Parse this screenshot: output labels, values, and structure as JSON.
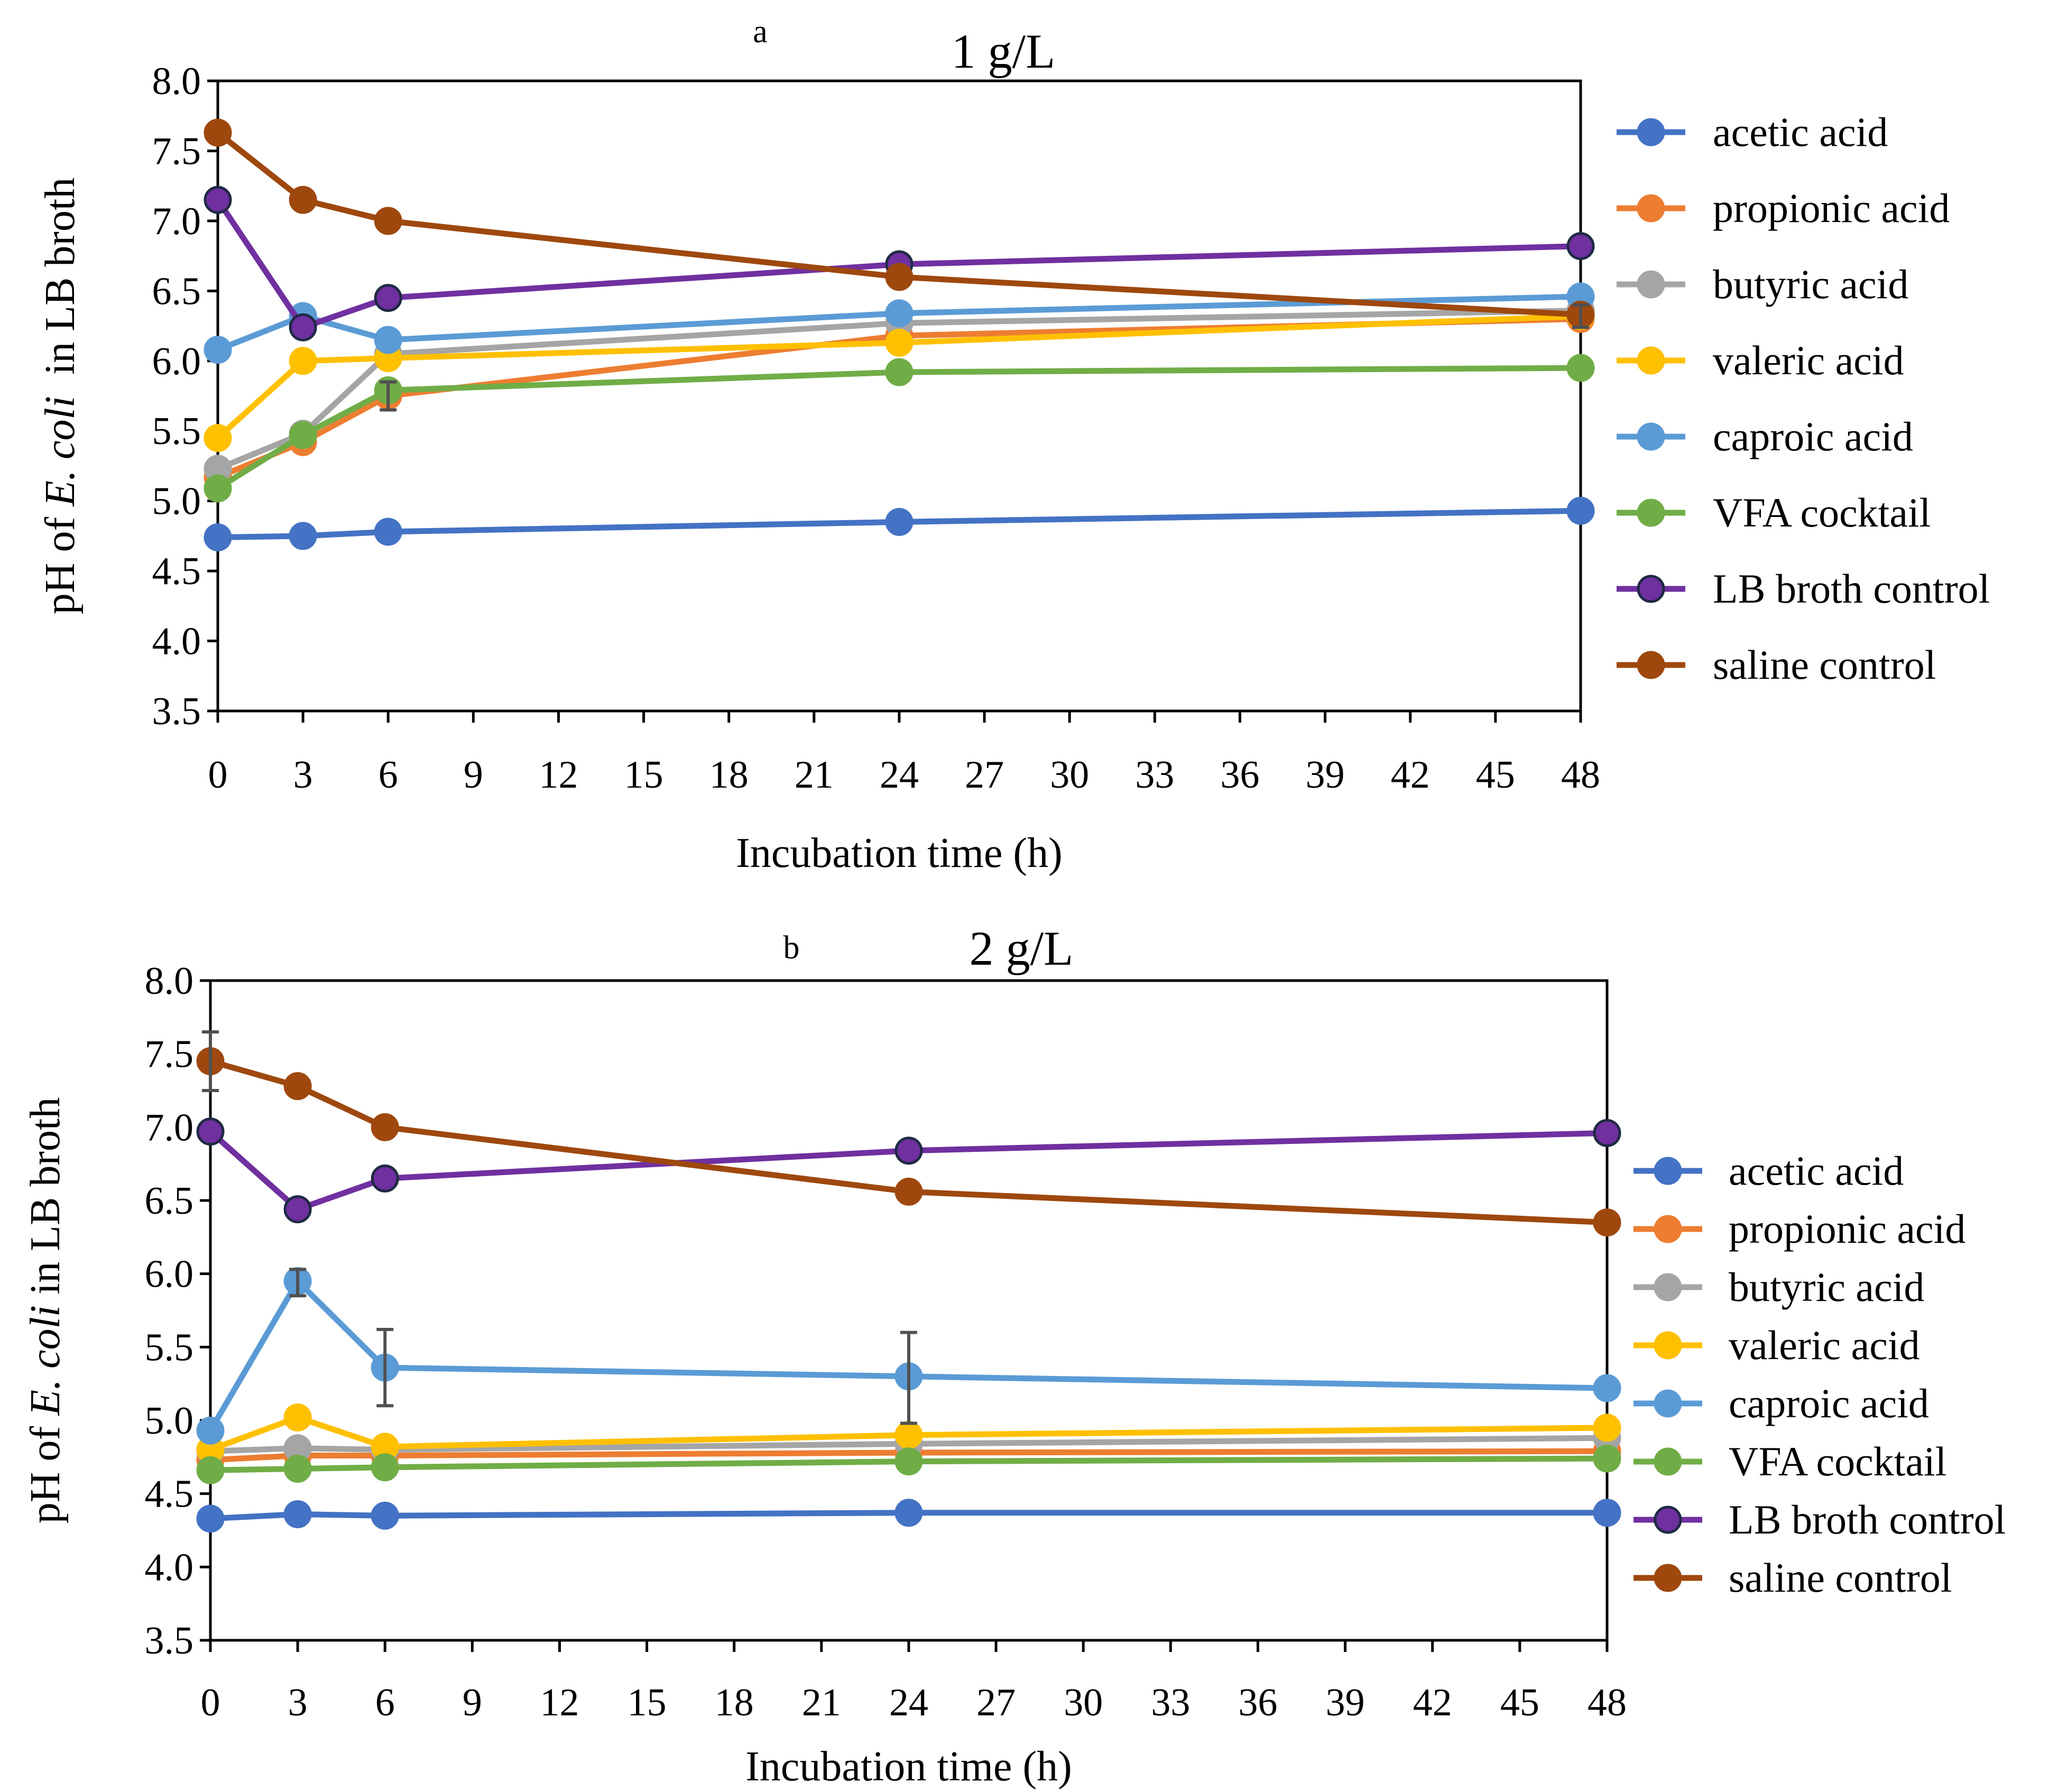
{
  "chart_data": [
    {
      "id": "a",
      "type": "line",
      "panel_letter": "a",
      "title": "1 g/L",
      "xlabel": "Incubation time (h)",
      "ylabel": {
        "prefix": "pH of ",
        "italic": "E. coli",
        "suffix": "  in LB broth"
      },
      "xlim": [
        0,
        48
      ],
      "ylim": [
        3.5,
        8.0
      ],
      "xticks": [
        "0",
        "3",
        "6",
        "9",
        "12",
        "15",
        "18",
        "21",
        "24",
        "27",
        "30",
        "33",
        "36",
        "39",
        "42",
        "45",
        "48"
      ],
      "yticks": [
        "3.5",
        "4.0",
        "4.5",
        "5.0",
        "5.5",
        "6.0",
        "6.5",
        "7.0",
        "7.5",
        "8.0"
      ],
      "x": [
        0,
        3,
        6,
        24,
        48
      ],
      "series": [
        {
          "name": "acetic acid",
          "color": "#4472C4",
          "values": [
            4.74,
            4.75,
            4.78,
            4.85,
            4.93
          ]
        },
        {
          "name": "propionic acid",
          "color": "#ED7D31",
          "values": [
            5.17,
            5.42,
            5.75,
            6.18,
            6.3
          ]
        },
        {
          "name": "butyric acid",
          "color": "#A5A5A5",
          "values": [
            5.23,
            5.48,
            6.05,
            6.27,
            6.36
          ]
        },
        {
          "name": "valeric acid",
          "color": "#FFC000",
          "values": [
            5.45,
            6.0,
            6.02,
            6.13,
            6.32
          ]
        },
        {
          "name": "caproic acid",
          "color": "#5B9BD5",
          "values": [
            6.08,
            6.32,
            6.15,
            6.34,
            6.46
          ]
        },
        {
          "name": "VFA cocktail",
          "color": "#70AD47",
          "values": [
            5.09,
            5.47,
            5.79,
            5.92,
            5.95
          ]
        },
        {
          "name": "LB broth control",
          "color": "#7030A0",
          "values": [
            7.15,
            6.24,
            6.45,
            6.69,
            6.82
          ]
        },
        {
          "name": "saline control",
          "color": "#9E480E",
          "values": [
            7.63,
            7.15,
            7.0,
            6.6,
            6.33
          ]
        }
      ],
      "error_bars": [
        {
          "x": 6,
          "low": 5.65,
          "high": 5.85
        },
        {
          "x": 48,
          "low": 6.24,
          "high": 6.4
        }
      ]
    },
    {
      "id": "b",
      "type": "line",
      "panel_letter": "b",
      "title": "2 g/L",
      "xlabel": "Incubation time (h)",
      "ylabel": {
        "prefix": "pH of ",
        "italic": "E. coli",
        "suffix": " in LB broth"
      },
      "xlim": [
        0,
        48
      ],
      "ylim": [
        3.5,
        8.0
      ],
      "xticks": [
        "0",
        "3",
        "6",
        "9",
        "12",
        "15",
        "18",
        "21",
        "24",
        "27",
        "30",
        "33",
        "36",
        "39",
        "42",
        "45",
        "48"
      ],
      "yticks": [
        "3.5",
        "4.0",
        "4.5",
        "5.0",
        "5.5",
        "6.0",
        "6.5",
        "7.0",
        "7.5",
        "8.0"
      ],
      "x": [
        0,
        3,
        6,
        24,
        48
      ],
      "series": [
        {
          "name": "acetic acid",
          "color": "#4472C4",
          "values": [
            4.33,
            4.36,
            4.35,
            4.37,
            4.37
          ]
        },
        {
          "name": "propionic acid",
          "color": "#ED7D31",
          "values": [
            4.73,
            4.76,
            4.76,
            4.78,
            4.79
          ]
        },
        {
          "name": "butyric acid",
          "color": "#A5A5A5",
          "values": [
            4.79,
            4.81,
            4.8,
            4.84,
            4.88
          ]
        },
        {
          "name": "valeric acid",
          "color": "#FFC000",
          "values": [
            4.8,
            5.02,
            4.82,
            4.9,
            4.95
          ]
        },
        {
          "name": "caproic acid",
          "color": "#5B9BD5",
          "values": [
            4.93,
            5.95,
            5.36,
            5.3,
            5.22
          ]
        },
        {
          "name": "VFA cocktail",
          "color": "#70AD47",
          "values": [
            4.66,
            4.67,
            4.68,
            4.72,
            4.74
          ]
        },
        {
          "name": "LB broth control",
          "color": "#7030A0",
          "values": [
            6.97,
            6.44,
            6.65,
            6.84,
            6.96
          ]
        },
        {
          "name": "saline control",
          "color": "#9E480E",
          "values": [
            7.45,
            7.28,
            7.0,
            6.56,
            6.35
          ]
        }
      ],
      "error_bars": [
        {
          "x": 0,
          "low": 7.25,
          "high": 7.65
        },
        {
          "x": 3,
          "low": 5.85,
          "high": 6.03
        },
        {
          "x": 6,
          "low": 5.1,
          "high": 5.62
        },
        {
          "x": 24,
          "low": 4.98,
          "high": 5.6
        }
      ]
    }
  ]
}
